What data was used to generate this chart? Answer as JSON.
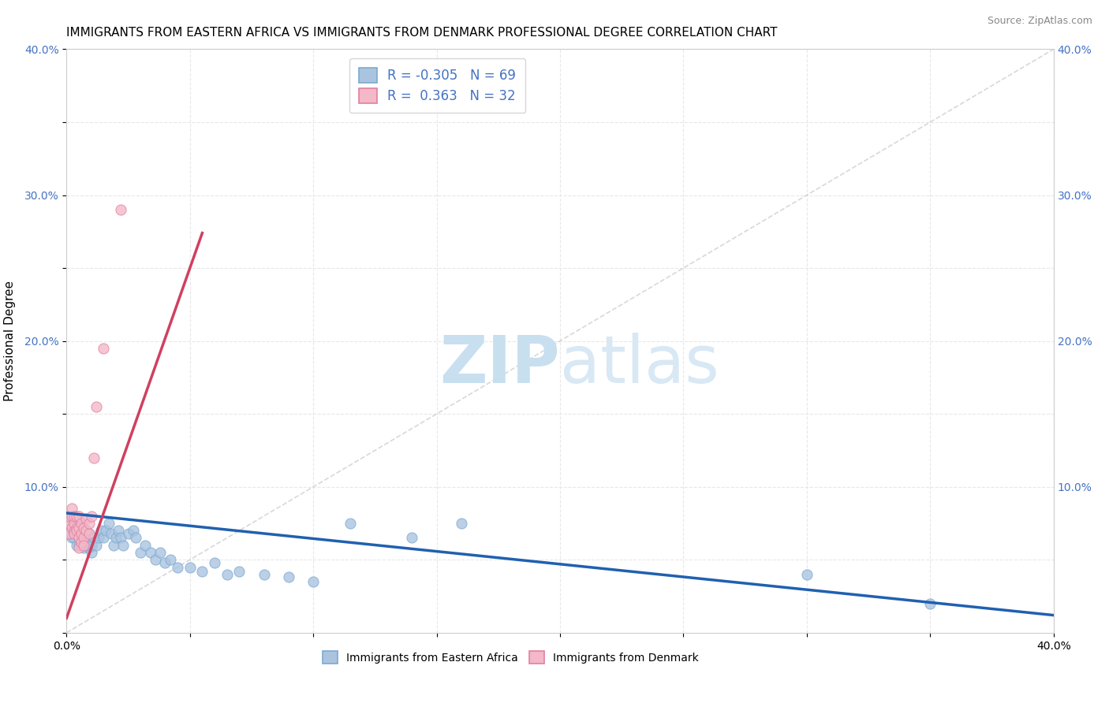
{
  "title": "IMMIGRANTS FROM EASTERN AFRICA VS IMMIGRANTS FROM DENMARK PROFESSIONAL DEGREE CORRELATION CHART",
  "source": "Source: ZipAtlas.com",
  "ylabel": "Professional Degree",
  "xlim": [
    0.0,
    0.4
  ],
  "ylim": [
    0.0,
    0.4
  ],
  "xticks": [
    0.0,
    0.05,
    0.1,
    0.15,
    0.2,
    0.25,
    0.3,
    0.35,
    0.4
  ],
  "yticks": [
    0.0,
    0.05,
    0.1,
    0.15,
    0.2,
    0.25,
    0.3,
    0.35,
    0.4
  ],
  "blue_color": "#aac4e0",
  "pink_color": "#f4b8c8",
  "blue_edge": "#7aaad0",
  "pink_edge": "#e080a0",
  "blue_line_color": "#2060b0",
  "pink_line_color": "#d04060",
  "ref_line_color": "#c8c8c8",
  "watermark_color": "#cde4f5",
  "R_blue": -0.305,
  "N_blue": 69,
  "R_pink": 0.363,
  "N_pink": 32,
  "blue_intercept": 0.082,
  "blue_slope": -0.175,
  "pink_intercept": 0.01,
  "pink_slope": 4.8,
  "pink_line_xmax": 0.055,
  "blue_x": [
    0.001,
    0.001,
    0.002,
    0.002,
    0.002,
    0.003,
    0.003,
    0.003,
    0.003,
    0.004,
    0.004,
    0.004,
    0.004,
    0.005,
    0.005,
    0.005,
    0.005,
    0.006,
    0.006,
    0.006,
    0.007,
    0.007,
    0.007,
    0.007,
    0.008,
    0.008,
    0.008,
    0.009,
    0.009,
    0.009,
    0.01,
    0.01,
    0.011,
    0.012,
    0.013,
    0.014,
    0.015,
    0.016,
    0.017,
    0.018,
    0.019,
    0.02,
    0.021,
    0.022,
    0.023,
    0.025,
    0.027,
    0.028,
    0.03,
    0.032,
    0.034,
    0.036,
    0.038,
    0.04,
    0.042,
    0.045,
    0.05,
    0.055,
    0.06,
    0.065,
    0.07,
    0.08,
    0.09,
    0.1,
    0.115,
    0.14,
    0.16,
    0.3,
    0.35
  ],
  "blue_y": [
    0.075,
    0.068,
    0.08,
    0.072,
    0.065,
    0.07,
    0.075,
    0.08,
    0.065,
    0.07,
    0.075,
    0.068,
    0.06,
    0.065,
    0.07,
    0.075,
    0.06,
    0.065,
    0.07,
    0.075,
    0.062,
    0.068,
    0.072,
    0.058,
    0.06,
    0.065,
    0.07,
    0.058,
    0.062,
    0.068,
    0.055,
    0.06,
    0.065,
    0.06,
    0.065,
    0.07,
    0.065,
    0.07,
    0.075,
    0.068,
    0.06,
    0.065,
    0.07,
    0.065,
    0.06,
    0.068,
    0.07,
    0.065,
    0.055,
    0.06,
    0.055,
    0.05,
    0.055,
    0.048,
    0.05,
    0.045,
    0.045,
    0.042,
    0.048,
    0.04,
    0.042,
    0.04,
    0.038,
    0.035,
    0.075,
    0.065,
    0.075,
    0.04,
    0.02
  ],
  "pink_x": [
    0.001,
    0.001,
    0.001,
    0.002,
    0.002,
    0.002,
    0.003,
    0.003,
    0.003,
    0.003,
    0.004,
    0.004,
    0.004,
    0.005,
    0.005,
    0.005,
    0.005,
    0.006,
    0.006,
    0.006,
    0.007,
    0.007,
    0.007,
    0.008,
    0.008,
    0.009,
    0.009,
    0.01,
    0.011,
    0.012,
    0.015,
    0.022
  ],
  "pink_y": [
    0.068,
    0.075,
    0.08,
    0.072,
    0.08,
    0.085,
    0.07,
    0.075,
    0.08,
    0.068,
    0.072,
    0.08,
    0.07,
    0.065,
    0.072,
    0.08,
    0.058,
    0.068,
    0.075,
    0.062,
    0.065,
    0.072,
    0.06,
    0.07,
    0.078,
    0.068,
    0.075,
    0.08,
    0.12,
    0.155,
    0.195,
    0.29
  ],
  "legend_text_color": "#4472c4",
  "background_color": "#ffffff",
  "grid_color": "#e8e8e8",
  "marker_size": 90
}
